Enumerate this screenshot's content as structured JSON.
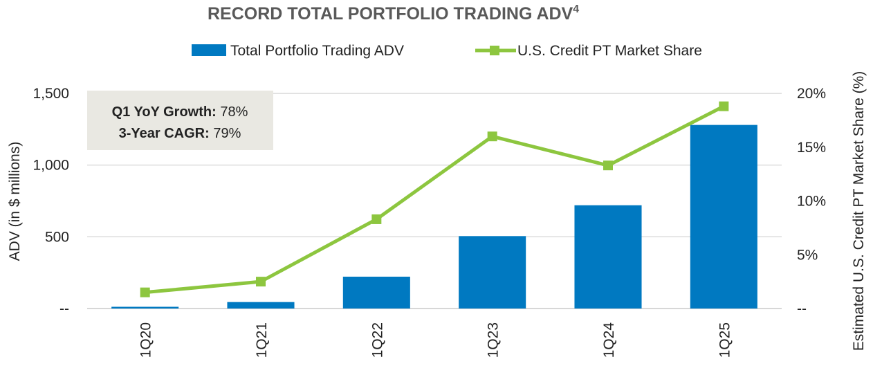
{
  "chart_data": {
    "type": "bar",
    "title": "RECORD TOTAL PORTFOLIO TRADING ADV",
    "title_superscript": "4",
    "categories": [
      "1Q20",
      "1Q21",
      "1Q22",
      "1Q23",
      "1Q24",
      "1Q25"
    ],
    "series": [
      {
        "name": "Total Portfolio Trading ADV",
        "type": "bar",
        "axis": "left",
        "color": "#0079C1",
        "values": [
          12,
          45,
          222,
          505,
          720,
          1280
        ]
      },
      {
        "name": "U.S. Credit PT Market Share",
        "type": "line",
        "axis": "right",
        "color": "#8DC63F",
        "marker": "square",
        "values": [
          1.5,
          2.5,
          8.3,
          16.0,
          13.3,
          18.8
        ]
      }
    ],
    "ylabel": "ADV (in $ millions)",
    "y2label": "Estimated U.S. Credit PT Market Share (%)",
    "ylim": [
      0,
      1500
    ],
    "y2lim": [
      0,
      20
    ],
    "yticks": [
      "--",
      "500",
      "1,000",
      "1,500"
    ],
    "y2ticks": [
      "--",
      "5%",
      "10%",
      "15%",
      "20%"
    ],
    "gridlines": true,
    "legend_position": "top",
    "annotation": {
      "line1_label": "Q1 YoY Growth:",
      "line1_value": " 78%",
      "line2_label": "3-Year CAGR:",
      "line2_value": " 79%",
      "background": "#E9E8E2"
    }
  }
}
